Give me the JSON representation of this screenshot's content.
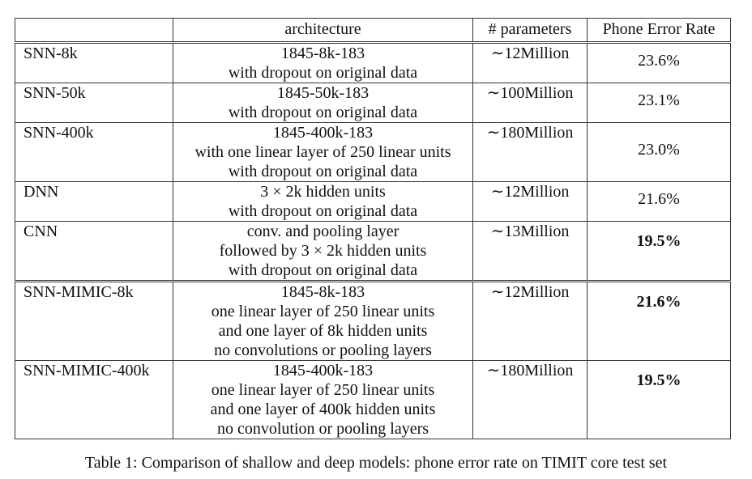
{
  "table": {
    "headers": {
      "name": "",
      "architecture": "architecture",
      "parameters": "# parameters",
      "per": "Phone Error Rate"
    },
    "rows": [
      {
        "name": "SNN-8k",
        "architecture": [
          "1845-8k-183",
          "with dropout on original data"
        ],
        "parameters": "∼12Million",
        "per": "23.6%",
        "per_bold": false
      },
      {
        "name": "SNN-50k",
        "architecture": [
          "1845-50k-183",
          "with dropout on original data"
        ],
        "parameters": "∼100Million",
        "per": "23.1%",
        "per_bold": false
      },
      {
        "name": "SNN-400k",
        "architecture": [
          "1845-400k-183",
          "with one linear layer of 250 linear units",
          "with dropout on original data"
        ],
        "parameters": "∼180Million",
        "per": "23.0%",
        "per_bold": false
      },
      {
        "name": "DNN",
        "architecture": [
          "3 × 2k hidden units",
          "with dropout on original data"
        ],
        "parameters": "∼12Million",
        "per": "21.6%",
        "per_bold": false
      },
      {
        "name": "CNN",
        "architecture": [
          "conv. and pooling layer",
          "followed by 3 × 2k hidden units",
          "with dropout on original data"
        ],
        "parameters": "∼13Million",
        "per": "19.5%",
        "per_bold": true
      },
      {
        "name": "SNN-MIMIC-8k",
        "architecture": [
          "1845-8k-183",
          "one linear layer of 250 linear units",
          "and one layer of 8k hidden units",
          "no convolutions or pooling layers"
        ],
        "parameters": "∼12Million",
        "per": "21.6%",
        "per_bold": true
      },
      {
        "name": "SNN-MIMIC-400k",
        "architecture": [
          "1845-400k-183",
          "one linear layer of 250 linear units",
          "and one layer of 400k hidden units",
          "no convolution or pooling layers"
        ],
        "parameters": "∼180Million",
        "per": "19.5%",
        "per_bold": true
      }
    ]
  },
  "caption": "Table 1: Comparison of shallow and deep models: phone error rate on TIMIT core test set"
}
